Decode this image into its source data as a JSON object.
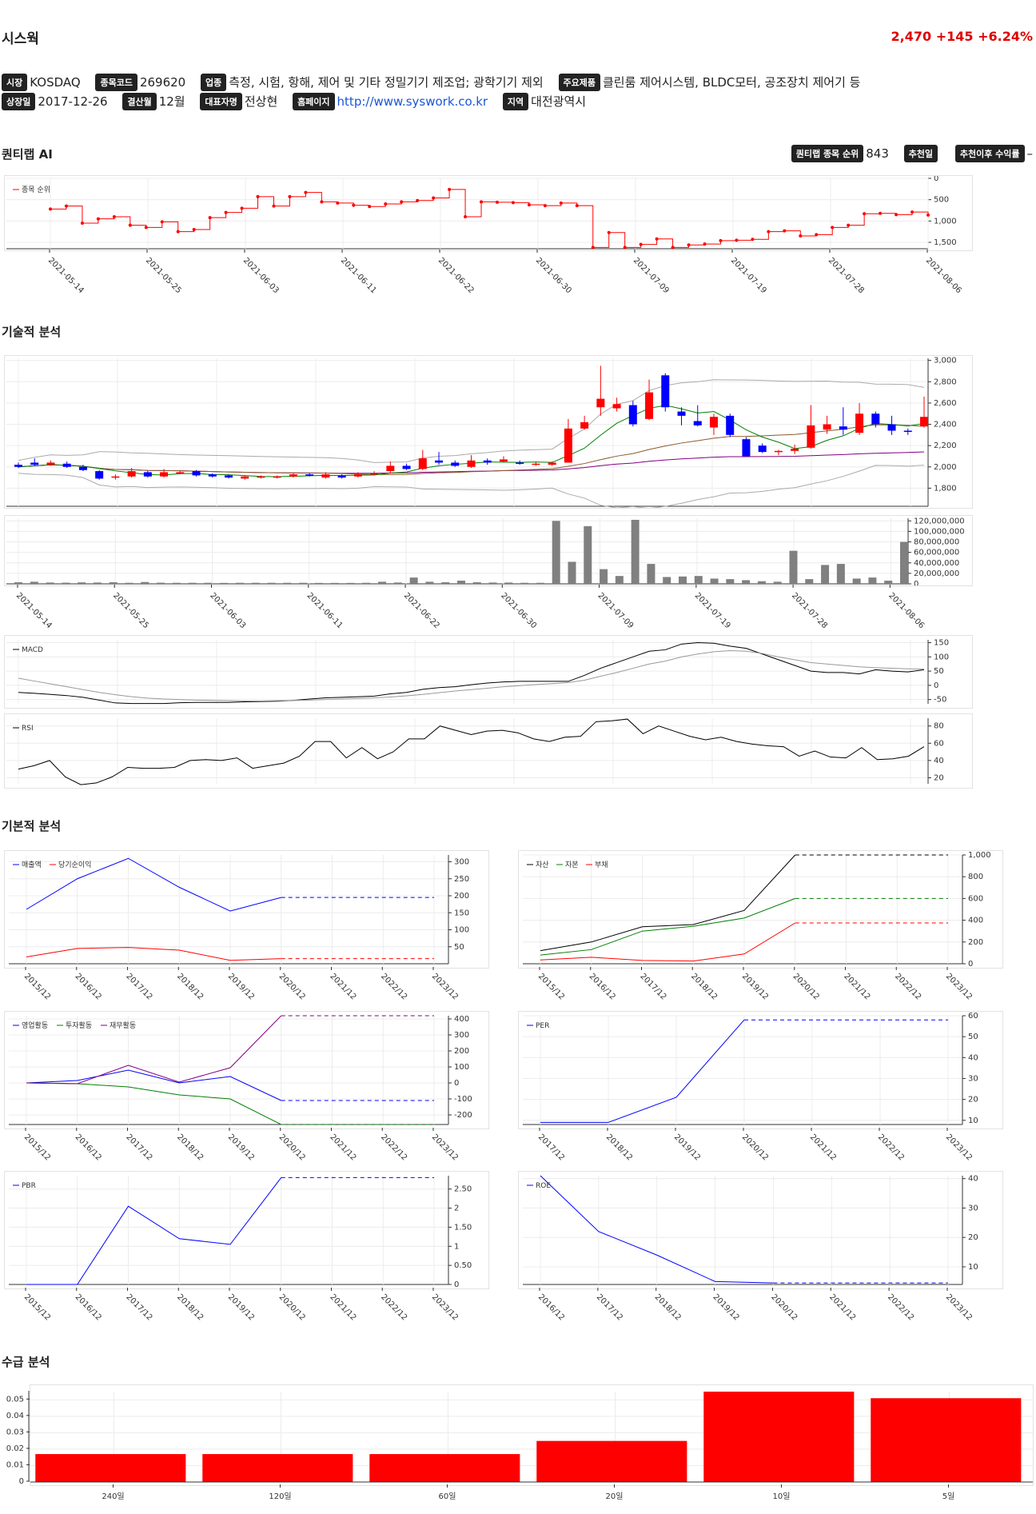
{
  "company": {
    "name": "시스웍",
    "price": "2,470",
    "change": "+145",
    "change_pct": "+6.24%"
  },
  "info": {
    "market_label": "시장",
    "market": "KOSDAQ",
    "code_label": "종목코드",
    "code": "269620",
    "industry_label": "업종",
    "industry": "측정, 시험, 항해, 제어 및 기타 정밀기기 제조업; 광학기기 제외",
    "products_label": "주요제품",
    "products": "클린룸 제어시스템, BLDC모터, 공조장치 제어기 등",
    "listed_label": "상장일",
    "listed": "2017-12-26",
    "fiscal_label": "결산월",
    "fiscal": "12월",
    "ceo_label": "대표자명",
    "ceo": "전상현",
    "homepage_label": "홈페이지",
    "homepage": "http://www.syswork.co.kr",
    "region_label": "지역",
    "region": "대전광역시"
  },
  "sections": {
    "ai": "퀀티랩 AI",
    "tech": "기술적 분석",
    "fund": "기본적 분석",
    "flow": "수급 분석"
  },
  "ai": {
    "rank_label": "퀀티랩 종목 순위",
    "rank": "843",
    "rec_date_label": "추천일",
    "rec_date": "",
    "rec_return_label": "추천이후 수익률",
    "rec_return": "–"
  },
  "dates": [
    "2021-05-14",
    "2021-05-25",
    "2021-06-03",
    "2021-06-11",
    "2021-06-22",
    "2021-06-30",
    "2021-07-09",
    "2021-07-19",
    "2021-07-28",
    "2021-08-06"
  ],
  "years_a": [
    "2015/12",
    "2016/12",
    "2017/12",
    "2018/12",
    "2019/12",
    "2020/12",
    "2021/12",
    "2022/12",
    "2023/12"
  ],
  "years_b": [
    "2017/12",
    "2018/12",
    "2019/12",
    "2020/12",
    "2021/12",
    "2022/12",
    "2023/12"
  ],
  "years_c": [
    "2016/12",
    "2017/12",
    "2018/12",
    "2019/12",
    "2020/12",
    "2021/12",
    "2022/12",
    "2023/12"
  ],
  "colors": {
    "up": "#ff0000",
    "down": "#0000ff",
    "bb": "#aaaaaa",
    "ma5": "#008000",
    "ma20": "#8b5a2b",
    "ma60": "#800080",
    "vol": "#808080"
  },
  "chart_data": [
    {
      "type": "line",
      "name": "rank",
      "series": [
        {
          "name": "종목 순위",
          "values": [
            720,
            650,
            1050,
            950,
            900,
            1100,
            1150,
            1020,
            1250,
            1200,
            920,
            800,
            700,
            430,
            650,
            430,
            330,
            550,
            580,
            630,
            660,
            600,
            550,
            520,
            460,
            260,
            900,
            550,
            560,
            570,
            620,
            640,
            580,
            640,
            1620,
            1270,
            1620,
            1550,
            1420,
            1620,
            1560,
            1540,
            1460,
            1450,
            1430,
            1250,
            1230,
            1350,
            1320,
            1150,
            1100,
            830,
            820,
            850,
            790,
            860
          ]
        },
        {
          "name": "",
          "values": []
        }
      ],
      "ylim": [
        1650,
        0
      ],
      "yticks": [
        "0",
        "500",
        "1,000",
        "1,500"
      ]
    },
    {
      "type": "candlestick",
      "name": "price",
      "candles": [
        [
          2020,
          2000,
          2040,
          1990
        ],
        [
          2040,
          2020,
          2080,
          2010
        ],
        [
          2020,
          2040,
          2060,
          2010
        ],
        [
          2030,
          2000,
          2050,
          1990
        ],
        [
          2000,
          1970,
          2020,
          1960
        ],
        [
          1960,
          1890,
          1970,
          1880
        ],
        [
          1900,
          1910,
          1930,
          1880
        ],
        [
          1910,
          1960,
          1990,
          1900
        ],
        [
          1950,
          1910,
          1960,
          1900
        ],
        [
          1910,
          1950,
          1980,
          1900
        ],
        [
          1950,
          1950,
          1960,
          1930
        ],
        [
          1960,
          1920,
          1970,
          1910
        ],
        [
          1930,
          1910,
          1940,
          1900
        ],
        [
          1920,
          1900,
          1930,
          1890
        ],
        [
          1890,
          1910,
          1920,
          1880
        ],
        [
          1910,
          1910,
          1920,
          1890
        ],
        [
          1900,
          1910,
          1920,
          1890
        ],
        [
          1910,
          1930,
          1940,
          1900
        ],
        [
          1930,
          1920,
          1940,
          1910
        ],
        [
          1900,
          1930,
          1950,
          1890
        ],
        [
          1920,
          1900,
          1930,
          1890
        ],
        [
          1910,
          1930,
          1950,
          1900
        ],
        [
          1930,
          1940,
          1960,
          1920
        ],
        [
          1960,
          2010,
          2050,
          1940
        ],
        [
          2010,
          1980,
          2030,
          1970
        ],
        [
          1980,
          2080,
          2160,
          1970
        ],
        [
          2060,
          2040,
          2140,
          2020
        ],
        [
          2040,
          2010,
          2060,
          2000
        ],
        [
          2000,
          2060,
          2110,
          1990
        ],
        [
          2060,
          2040,
          2080,
          2020
        ],
        [
          2050,
          2070,
          2100,
          2040
        ],
        [
          2040,
          2030,
          2060,
          2020
        ],
        [
          2020,
          2030,
          2050,
          2010
        ],
        [
          2020,
          2040,
          2050,
          2010
        ],
        [
          2040,
          2360,
          2450,
          2040
        ],
        [
          2360,
          2420,
          2480,
          2350
        ],
        [
          2560,
          2640,
          2950,
          2480
        ],
        [
          2550,
          2590,
          2650,
          2520
        ],
        [
          2580,
          2400,
          2620,
          2380
        ],
        [
          2450,
          2700,
          2820,
          2440
        ],
        [
          2860,
          2560,
          2880,
          2520
        ],
        [
          2520,
          2480,
          2560,
          2390
        ],
        [
          2430,
          2390,
          2580,
          2380
        ],
        [
          2370,
          2470,
          2500,
          2300
        ],
        [
          2480,
          2300,
          2500,
          2280
        ],
        [
          2260,
          2100,
          2280,
          2100
        ],
        [
          2200,
          2140,
          2220,
          2130
        ],
        [
          2140,
          2150,
          2160,
          2110
        ],
        [
          2150,
          2170,
          2210,
          2120
        ],
        [
          2180,
          2390,
          2580,
          2170
        ],
        [
          2350,
          2400,
          2480,
          2310
        ],
        [
          2380,
          2350,
          2560,
          2300
        ],
        [
          2320,
          2500,
          2600,
          2300
        ],
        [
          2500,
          2400,
          2520,
          2370
        ],
        [
          2400,
          2340,
          2480,
          2300
        ],
        [
          2340,
          2330,
          2360,
          2300
        ],
        [
          2380,
          2470,
          2660,
          2370
        ]
      ],
      "ylim": [
        1630,
        3020
      ],
      "yticks": [
        "1,800",
        "2,000",
        "2,200",
        "2,400",
        "2,600",
        "2,800",
        "3,000"
      ]
    },
    {
      "type": "bar",
      "name": "volume",
      "values": [
        3000000,
        4000000,
        2500000,
        2200000,
        2800000,
        2500000,
        3000000,
        2000000,
        3500000,
        2200000,
        2000000,
        2000000,
        2000000,
        1800000,
        2000000,
        2000000,
        2000000,
        2000000,
        2000000,
        1800000,
        1800000,
        1800000,
        2000000,
        4000000,
        2500000,
        12000000,
        4000000,
        3000000,
        6000000,
        3000000,
        2500000,
        2500000,
        2000000,
        2000000,
        120000000,
        42000000,
        110000000,
        28000000,
        15000000,
        122000000,
        38000000,
        13000000,
        14000000,
        15000000,
        10000000,
        9000000,
        7000000,
        5000000,
        4000000,
        63000000,
        9000000,
        36000000,
        38000000,
        10000000,
        12000000,
        6000000,
        80000000
      ],
      "ylim": [
        0,
        125000000
      ],
      "yticks": [
        "0",
        "20,000,000",
        "40,000,000",
        "60,000,000",
        "80,000,000",
        "100,000,000",
        "120,000,000"
      ]
    },
    {
      "type": "line",
      "name": "macd",
      "series": [
        {
          "name": "MACD",
          "values": [
            -25,
            -28,
            -32,
            -36,
            -42,
            -52,
            -62,
            -64,
            -64,
            -64,
            -61,
            -60,
            -60,
            -60,
            -58,
            -57,
            -56,
            -53,
            -48,
            -44,
            -42,
            -40,
            -38,
            -30,
            -25,
            -14,
            -8,
            -5,
            2,
            8,
            12,
            14,
            14,
            14,
            14,
            35,
            60,
            80,
            100,
            120,
            125,
            145,
            150,
            148,
            138,
            130,
            110,
            90,
            70,
            50,
            45,
            45,
            40,
            55,
            50,
            47,
            55
          ]
        },
        {
          "name": "",
          "values": [
            25,
            15,
            5,
            -5,
            -15,
            -25,
            -33,
            -40,
            -45,
            -48,
            -50,
            -52,
            -53,
            -54,
            -55,
            -55,
            -54,
            -53,
            -52,
            -50,
            -48,
            -46,
            -44,
            -41,
            -37,
            -32,
            -26,
            -20,
            -15,
            -10,
            -5,
            -1,
            3,
            6,
            10,
            18,
            32,
            45,
            60,
            75,
            85,
            100,
            110,
            118,
            122,
            120,
            112,
            100,
            90,
            80,
            75,
            70,
            65,
            62,
            60,
            58,
            57
          ]
        }
      ],
      "ylim": [
        -65,
        160
      ],
      "yticks": [
        "-50",
        "0",
        "50",
        "100",
        "150"
      ]
    },
    {
      "type": "line",
      "name": "rsi",
      "series": [
        {
          "name": "RSI",
          "values": [
            30,
            34,
            40,
            21,
            12,
            14,
            21,
            32,
            31,
            31,
            32,
            40,
            41,
            40,
            43,
            31,
            34,
            37,
            45,
            62,
            62,
            43,
            55,
            42,
            50,
            65,
            65,
            80,
            75,
            70,
            74,
            75,
            72,
            65,
            62,
            67,
            68,
            85,
            86,
            88,
            71,
            80,
            74,
            68,
            64,
            67,
            62,
            59,
            57,
            56,
            45,
            51,
            44,
            43,
            55,
            41,
            42,
            45,
            56
          ]
        }
      ],
      "ylim": [
        13,
        89
      ],
      "yticks": [
        "20",
        "40",
        "60",
        "80"
      ]
    },
    {
      "type": "line",
      "name": "sales",
      "series": [
        {
          "name": "매출액",
          "values": [
            160,
            250,
            310,
            225,
            155,
            195,
            195,
            195,
            195
          ]
        },
        {
          "name": "당기순이익",
          "values": [
            20,
            45,
            48,
            40,
            10,
            15,
            15,
            15,
            15
          ]
        }
      ],
      "ylim": [
        0,
        320
      ],
      "yticks": [
        "50",
        "100",
        "150",
        "200",
        "250",
        "300"
      ]
    },
    {
      "type": "line",
      "name": "balance",
      "series": [
        {
          "name": "자산",
          "values": [
            120,
            200,
            340,
            360,
            490,
            1000,
            1000,
            1000,
            1000
          ]
        },
        {
          "name": "자본",
          "values": [
            80,
            130,
            300,
            345,
            420,
            600,
            600,
            600,
            600
          ]
        },
        {
          "name": "부채",
          "values": [
            35,
            60,
            30,
            25,
            90,
            375,
            375,
            375,
            375
          ]
        }
      ],
      "ylim": [
        0,
        1000
      ],
      "yticks": [
        "0",
        "200",
        "400",
        "600",
        "800",
        "1,000"
      ]
    },
    {
      "type": "line",
      "name": "cashflow",
      "series": [
        {
          "name": "영업활동",
          "values": [
            0,
            15,
            80,
            0,
            40,
            -110,
            -110,
            -110,
            -110
          ]
        },
        {
          "name": "투자활동",
          "values": [
            0,
            -5,
            -25,
            -75,
            -100,
            -260,
            -260,
            -260,
            -260
          ]
        },
        {
          "name": "재무활동",
          "values": [
            0,
            -5,
            110,
            5,
            95,
            420,
            420,
            420,
            420
          ]
        }
      ],
      "ylim": [
        -260,
        420
      ],
      "yticks": [
        "-200",
        "-100",
        "0",
        "100",
        "200",
        "300",
        "400"
      ]
    },
    {
      "type": "line",
      "name": "per",
      "series": [
        {
          "name": "PER",
          "values": [
            9,
            9,
            21,
            58,
            58,
            58,
            58
          ]
        }
      ],
      "ylim": [
        8,
        60
      ],
      "yticks": [
        "10",
        "20",
        "30",
        "40",
        "50",
        "60"
      ]
    },
    {
      "type": "line",
      "name": "pbr",
      "series": [
        {
          "name": "PBR",
          "values": [
            0,
            0,
            2.05,
            1.2,
            1.05,
            2.8,
            2.8,
            2.8,
            2.8
          ]
        }
      ],
      "ylim": [
        0,
        2.85
      ],
      "yticks": [
        "0",
        "0.50",
        "1",
        "1.50",
        "2",
        "2.50"
      ]
    },
    {
      "type": "line",
      "name": "roe",
      "series": [
        {
          "name": "ROE",
          "values": [
            41,
            22,
            14,
            5,
            4.5,
            4.5,
            4.5,
            4.5
          ]
        }
      ],
      "ylim": [
        4,
        41
      ],
      "yticks": [
        "10",
        "20",
        "30",
        "40"
      ]
    },
    {
      "type": "bar",
      "name": "supply",
      "categories": [
        "240일",
        "120일",
        "60일",
        "20일",
        "10일",
        "5일"
      ],
      "values": [
        0.017,
        0.017,
        0.017,
        0.025,
        0.055,
        0.051
      ],
      "ylim": [
        0,
        0.055
      ],
      "yticks": [
        "0",
        "0.01",
        "0.02",
        "0.03",
        "0.04",
        "0.05"
      ]
    }
  ]
}
